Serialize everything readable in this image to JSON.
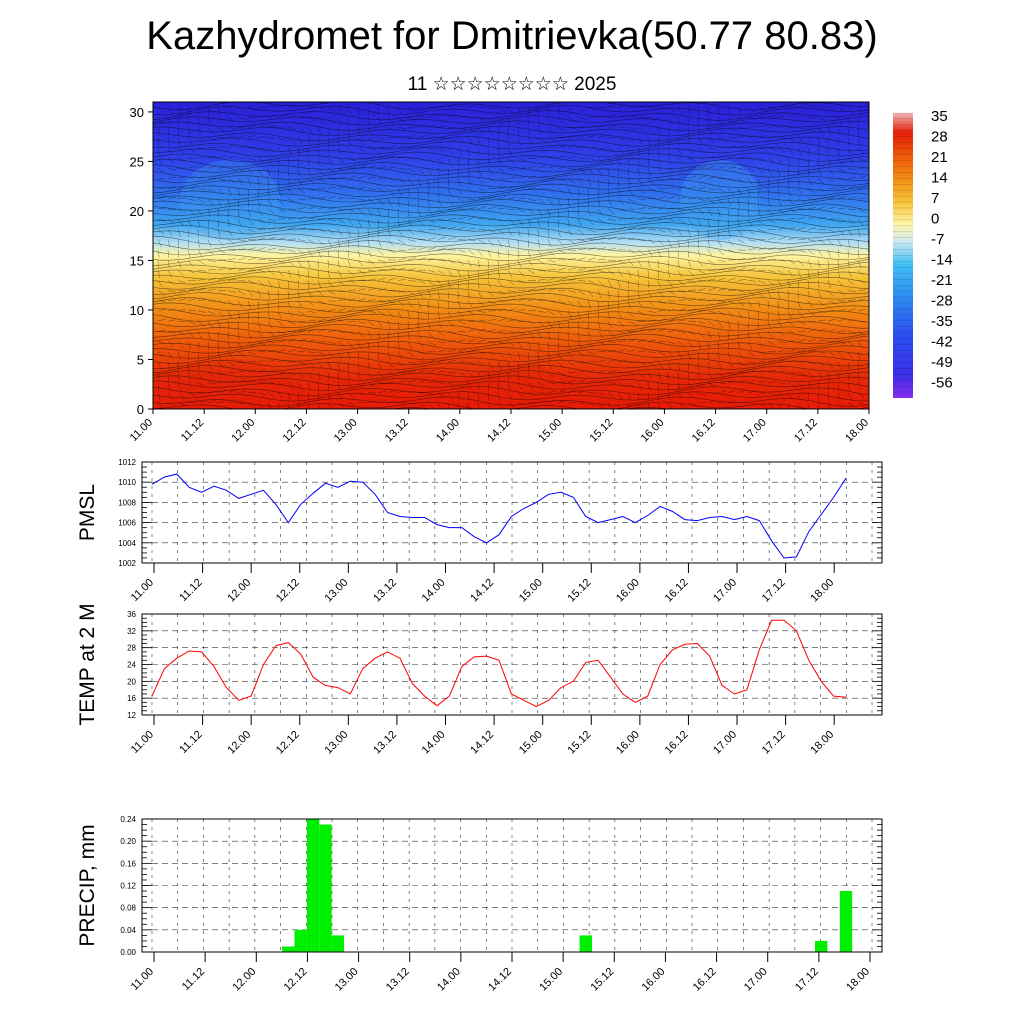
{
  "header": {
    "title": "Kazhydromet for Dmitrievka(50.77 80.83)",
    "subtitle": "11 ☆☆☆☆☆☆☆☆ 2025"
  },
  "colors": {
    "pmsl_line": "#0000ff",
    "temp_line": "#ff0000",
    "precip_bar": "#00ee00"
  },
  "chart_data": [
    {
      "type": "heatmap",
      "title": "",
      "x_ticks": [
        "11.00",
        "11.12",
        "12.00",
        "12.12",
        "13.00",
        "13.12",
        "14.00",
        "14.12",
        "15.00",
        "15.12",
        "16.00",
        "16.12",
        "17.00",
        "17.12",
        "18.00"
      ],
      "y_ticks": [
        "0",
        "5",
        "10",
        "15",
        "20",
        "25",
        "30"
      ],
      "ylim": [
        0,
        31
      ],
      "colorbar": {
        "labels": [
          "35",
          "28",
          "21",
          "14",
          "7",
          "0",
          "-7",
          "-14",
          "-21",
          "-28",
          "-35",
          "-42",
          "-49",
          "-56"
        ],
        "range": [
          -60,
          38
        ]
      },
      "overlay": "wind-streamlines"
    },
    {
      "type": "line",
      "ylabel": "PMSL",
      "ylim": [
        1002,
        1012
      ],
      "y_ticks": [
        "1002",
        "1004",
        "1006",
        "1008",
        "1010",
        "1012"
      ],
      "x_ticks": [
        "11.00",
        "11.12",
        "12.00",
        "12.12",
        "13.00",
        "13.12",
        "14.00",
        "14.12",
        "15.00",
        "15.12",
        "16.00",
        "16.12",
        "17.00",
        "17.12",
        "18.00"
      ],
      "values": [
        1009.8,
        1010.5,
        1010.8,
        1009.5,
        1009.0,
        1009.6,
        1009.2,
        1008.4,
        1008.8,
        1009.2,
        1007.8,
        1006.0,
        1007.8,
        1008.9,
        1009.9,
        1009.5,
        1010.1,
        1010.0,
        1008.8,
        1007.0,
        1006.6,
        1006.5,
        1006.5,
        1005.8,
        1005.5,
        1005.5,
        1004.6,
        1004.0,
        1004.8,
        1006.6,
        1007.4,
        1008.0,
        1008.8,
        1009.0,
        1008.5,
        1006.6,
        1006.0,
        1006.3,
        1006.6,
        1006.0,
        1006.7,
        1007.6,
        1007.1,
        1006.3,
        1006.2,
        1006.5,
        1006.6,
        1006.3,
        1006.6,
        1006.2,
        1004.2,
        1002.5,
        1002.6,
        1005.1,
        1006.8,
        1008.5,
        1010.4
      ],
      "grid": true
    },
    {
      "type": "line",
      "ylabel": "TEMP at 2 M",
      "ylim": [
        12,
        36
      ],
      "y_ticks": [
        "12",
        "16",
        "20",
        "24",
        "28",
        "32",
        "36"
      ],
      "x_ticks": [
        "11.00",
        "11.12",
        "12.00",
        "12.12",
        "13.00",
        "13.12",
        "14.00",
        "14.12",
        "15.00",
        "15.12",
        "16.00",
        "16.12",
        "17.00",
        "17.12",
        "18.00"
      ],
      "values": [
        16.5,
        23.0,
        25.5,
        27.2,
        27.0,
        23.5,
        18.5,
        15.5,
        16.5,
        24.0,
        28.5,
        29.2,
        26.5,
        21.0,
        19.0,
        18.5,
        17.0,
        23.0,
        25.5,
        27.0,
        25.5,
        19.5,
        16.5,
        14.2,
        16.5,
        23.5,
        25.8,
        26.0,
        25.0,
        17.0,
        15.5,
        14.0,
        15.5,
        18.5,
        20.0,
        24.5,
        25.0,
        21.0,
        17.0,
        15.0,
        16.5,
        24.0,
        27.5,
        28.8,
        29.0,
        26.0,
        19.0,
        17.0,
        18.0,
        27.5,
        34.5,
        34.5,
        32.0,
        25.0,
        20.0,
        16.5,
        16.2
      ],
      "grid": true
    },
    {
      "type": "bar",
      "ylabel": "PRECIP, mm",
      "ylim": [
        0,
        0.24
      ],
      "y_ticks": [
        "0.00",
        "0.04",
        "0.08",
        "0.12",
        "0.16",
        "0.20",
        "0.24"
      ],
      "x_ticks": [
        "11.00",
        "11.12",
        "12.00",
        "12.12",
        "13.00",
        "13.12",
        "14.00",
        "14.12",
        "15.00",
        "15.12",
        "16.00",
        "16.12",
        "17.00",
        "17.12",
        "18.00"
      ],
      "values": [
        0,
        0,
        0,
        0,
        0,
        0,
        0,
        0,
        0,
        0,
        0,
        0.01,
        0.04,
        0.24,
        0.23,
        0.03,
        0,
        0,
        0,
        0,
        0,
        0,
        0,
        0,
        0,
        0,
        0,
        0,
        0,
        0,
        0,
        0,
        0,
        0,
        0,
        0.03,
        0,
        0,
        0,
        0,
        0,
        0,
        0,
        0,
        0,
        0,
        0,
        0,
        0,
        0,
        0,
        0,
        0,
        0,
        0.02,
        0,
        0.11
      ],
      "grid": true
    }
  ]
}
